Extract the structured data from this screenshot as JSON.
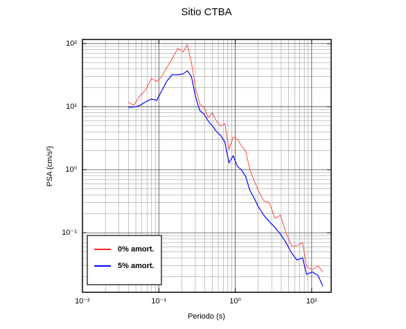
{
  "chart_data": {
    "type": "line",
    "title": "Sitio CTBA",
    "x_label": "Periodo (s)",
    "y_label": "PSA (cm/s²)",
    "log_x": true,
    "log_y": true,
    "grid": true,
    "legend_loc": "lower left",
    "xlim": [
      0.01,
      18
    ],
    "ylim": [
      0.0114,
      116
    ],
    "xticks": [
      {
        "value": 0.01,
        "label": "10⁻²"
      },
      {
        "value": 0.1,
        "label": "10⁻¹"
      },
      {
        "value": 1,
        "label": "10⁰"
      },
      {
        "value": 10,
        "label": "10¹"
      }
    ],
    "yticks": [
      {
        "value": 0.1,
        "label": "10⁻¹"
      },
      {
        "value": 1,
        "label": "10⁰"
      },
      {
        "value": 10,
        "label": "10¹"
      },
      {
        "value": 100,
        "label": "10²"
      }
    ],
    "x": [
      0.04,
      0.047,
      0.055,
      0.067,
      0.08,
      0.094,
      0.107,
      0.126,
      0.149,
      0.176,
      0.208,
      0.236,
      0.267,
      0.303,
      0.344,
      0.39,
      0.442,
      0.5,
      0.568,
      0.644,
      0.73,
      0.828,
      0.94,
      1.065,
      1.2,
      1.37,
      1.55,
      1.76,
      2.0,
      2.36,
      2.79,
      3.3,
      3.9,
      4.6,
      5.45,
      6.4,
      7.6,
      8.6,
      10.2,
      12.1,
      14
    ],
    "series": [
      {
        "name": "0% amort.",
        "color": "#ff2020",
        "values": [
          11.7,
          10.5,
          14.2,
          18.4,
          28,
          25,
          29,
          41,
          57,
          84,
          74,
          95,
          50,
          19.3,
          11,
          9.75,
          6.7,
          8.0,
          5.9,
          4.9,
          5.4,
          2.1,
          3.3,
          3.1,
          2.4,
          1.98,
          1.0,
          0.68,
          0.47,
          0.32,
          0.3,
          0.17,
          0.19,
          0.1,
          0.062,
          0.062,
          0.07,
          0.029,
          0.026,
          0.03,
          0.024
        ]
      },
      {
        "name": "5% amort.",
        "color": "#0000ff",
        "values": [
          9.75,
          9.8,
          10.3,
          11.9,
          13.2,
          12.6,
          17,
          25,
          32,
          32,
          33,
          37,
          30,
          14,
          8.6,
          7.6,
          5.9,
          5.0,
          4.0,
          3.5,
          2.75,
          1.29,
          1.66,
          1.13,
          1.0,
          0.78,
          0.47,
          0.36,
          0.26,
          0.19,
          0.15,
          0.122,
          0.095,
          0.07,
          0.048,
          0.037,
          0.04,
          0.022,
          0.024,
          0.021,
          0.0142
        ]
      }
    ]
  }
}
